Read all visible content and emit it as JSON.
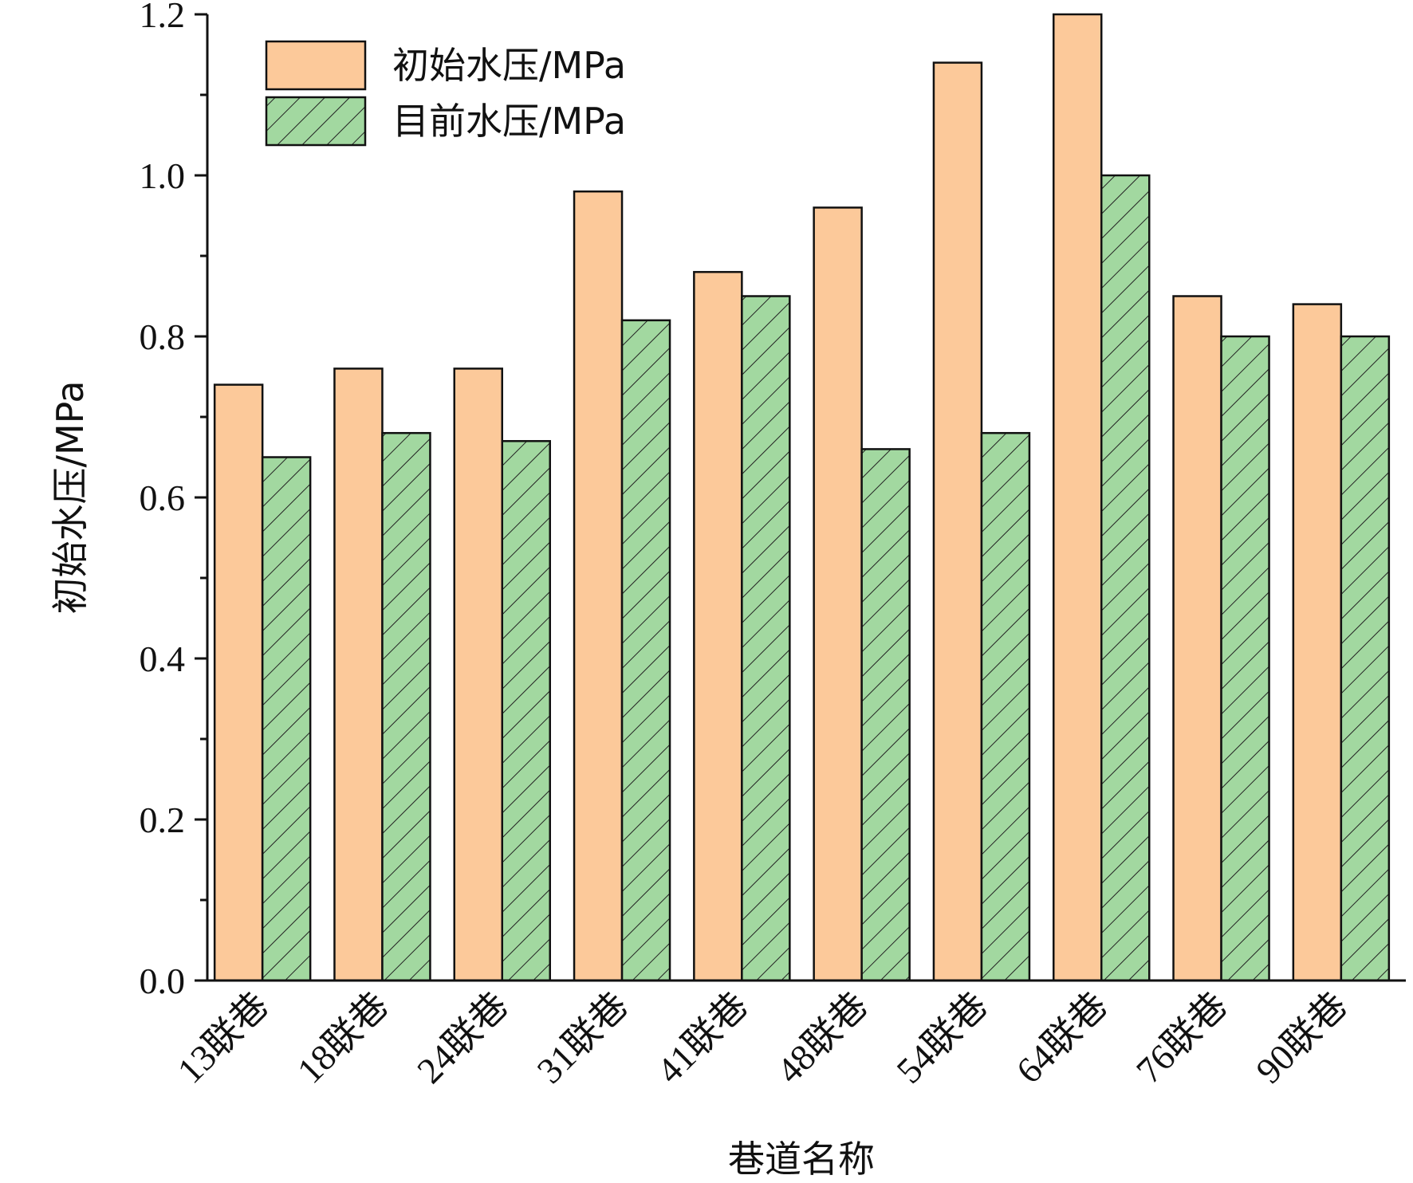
{
  "chart_data": {
    "type": "bar",
    "categories": [
      "13联巷",
      "18联巷",
      "24联巷",
      "31联巷",
      "41联巷",
      "48联巷",
      "54联巷",
      "64联巷",
      "76联巷",
      "90联巷"
    ],
    "series": [
      {
        "name": "初始水压/MPa",
        "values": [
          0.74,
          0.76,
          0.76,
          0.98,
          0.88,
          0.96,
          1.14,
          1.2,
          0.85,
          0.84
        ],
        "color": "#FCC99A",
        "pattern": "solid"
      },
      {
        "name": "目前水压/MPa",
        "values": [
          0.65,
          0.68,
          0.67,
          0.82,
          0.85,
          0.66,
          0.68,
          1.0,
          0.8,
          0.8
        ],
        "color": "#A2D8A0",
        "pattern": "hatch"
      }
    ],
    "xlabel": "巷道名称",
    "ylabel": "初始水压/MPa",
    "ylim": [
      0,
      1.2
    ],
    "yticks": [
      "0.0",
      "0.2",
      "0.4",
      "0.6",
      "0.8",
      "1.0",
      "1.2"
    ],
    "legend_position": "top-left",
    "grid": false
  }
}
